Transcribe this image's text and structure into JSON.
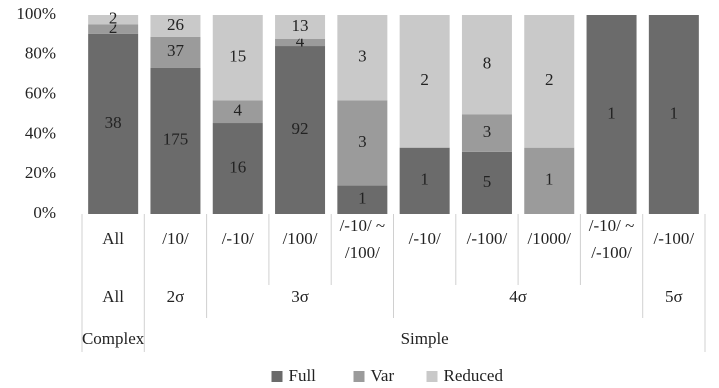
{
  "chart_data": {
    "type": "bar",
    "stack": "percent",
    "categories": [
      "All",
      "/10/",
      "/-10/",
      "/100/",
      "/-10/ ~\n/100/",
      "/-10/",
      "/-100/",
      "/1000/",
      "/-10/ ~\n/-100/",
      "/-100/"
    ],
    "group_rows": [
      [
        "All",
        "2σ",
        "3σ",
        null,
        null,
        "4σ",
        null,
        null,
        null,
        "5σ"
      ],
      [
        "Complex",
        "Simple",
        null,
        null,
        null,
        null,
        null,
        null,
        null,
        null
      ]
    ],
    "series": [
      {
        "name": "Full",
        "color": "#6b6b6b",
        "values": [
          38,
          175,
          16,
          92,
          1,
          1,
          5,
          null,
          1,
          1
        ]
      },
      {
        "name": "Var",
        "color": "#9b9b9b",
        "values": [
          2,
          37,
          4,
          4,
          3,
          null,
          3,
          1,
          null,
          null
        ]
      },
      {
        "name": "Reduced",
        "color": "#c9c9c9",
        "values": [
          2,
          26,
          15,
          13,
          3,
          2,
          8,
          2,
          null,
          null
        ]
      }
    ],
    "ylim": [
      0,
      100
    ],
    "yticks": [
      {
        "value": 0,
        "label": "0%"
      },
      {
        "value": 20,
        "label": "20%"
      },
      {
        "value": 40,
        "label": "40%"
      },
      {
        "value": 60,
        "label": "60%"
      },
      {
        "value": 80,
        "label": "80%"
      },
      {
        "value": 100,
        "label": "100%"
      }
    ],
    "legend": "bottom"
  }
}
